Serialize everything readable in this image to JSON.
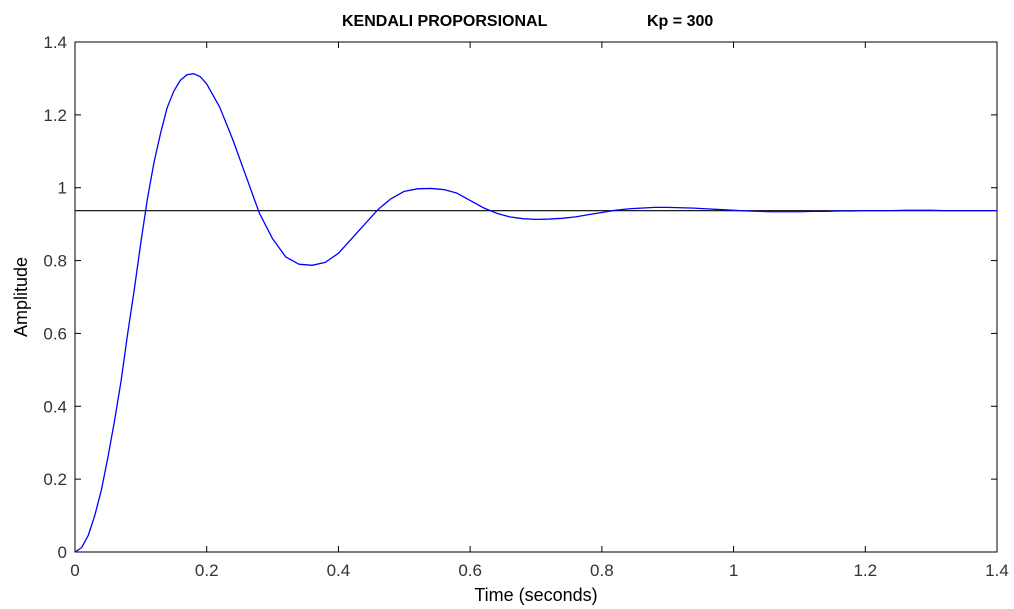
{
  "chart_data": {
    "type": "line",
    "title_left": "KENDALI PROPORSIONAL",
    "title_right": "Kp = 300",
    "xlabel": "Time (seconds)",
    "ylabel": "Amplitude",
    "xlim": [
      0,
      1.4
    ],
    "ylim": [
      0,
      1.4
    ],
    "xticks": [
      "0",
      "0.2",
      "0.4",
      "0.6",
      "0.8",
      "1",
      "1.2",
      "1.4"
    ],
    "yticks": [
      "0",
      "0.2",
      "0.4",
      "0.6",
      "0.8",
      "1",
      "1.2",
      "1.4"
    ],
    "grid": false,
    "colors": {
      "response": "#0000ff",
      "reference": "#000000",
      "axes": "#000000"
    },
    "series": [
      {
        "values": [
          [
            0,
            0
          ],
          [
            0.01,
            0.012
          ],
          [
            0.02,
            0.045
          ],
          [
            0.03,
            0.1
          ],
          [
            0.04,
            0.17
          ],
          [
            0.05,
            0.26
          ],
          [
            0.06,
            0.36
          ],
          [
            0.07,
            0.47
          ],
          [
            0.08,
            0.6
          ],
          [
            0.09,
            0.72
          ],
          [
            0.1,
            0.85
          ],
          [
            0.11,
            0.97
          ],
          [
            0.12,
            1.07
          ],
          [
            0.13,
            1.15
          ],
          [
            0.14,
            1.22
          ],
          [
            0.15,
            1.265
          ],
          [
            0.16,
            1.295
          ],
          [
            0.17,
            1.31
          ],
          [
            0.18,
            1.313
          ],
          [
            0.19,
            1.305
          ],
          [
            0.2,
            1.285
          ],
          [
            0.22,
            1.22
          ],
          [
            0.24,
            1.13
          ],
          [
            0.26,
            1.03
          ],
          [
            0.28,
            0.93
          ],
          [
            0.3,
            0.86
          ],
          [
            0.32,
            0.81
          ],
          [
            0.34,
            0.79
          ],
          [
            0.36,
            0.787
          ],
          [
            0.38,
            0.795
          ],
          [
            0.4,
            0.82
          ],
          [
            0.42,
            0.86
          ],
          [
            0.44,
            0.9
          ],
          [
            0.46,
            0.94
          ],
          [
            0.48,
            0.97
          ],
          [
            0.5,
            0.99
          ],
          [
            0.52,
            0.997
          ],
          [
            0.54,
            0.998
          ],
          [
            0.56,
            0.995
          ],
          [
            0.58,
            0.985
          ],
          [
            0.6,
            0.965
          ],
          [
            0.62,
            0.945
          ],
          [
            0.64,
            0.93
          ],
          [
            0.66,
            0.92
          ],
          [
            0.68,
            0.915
          ],
          [
            0.7,
            0.913
          ],
          [
            0.72,
            0.914
          ],
          [
            0.74,
            0.916
          ],
          [
            0.76,
            0.92
          ],
          [
            0.78,
            0.926
          ],
          [
            0.8,
            0.932
          ],
          [
            0.82,
            0.938
          ],
          [
            0.84,
            0.942
          ],
          [
            0.86,
            0.944
          ],
          [
            0.88,
            0.946
          ],
          [
            0.9,
            0.946
          ],
          [
            0.92,
            0.945
          ],
          [
            0.94,
            0.944
          ],
          [
            0.96,
            0.942
          ],
          [
            0.98,
            0.94
          ],
          [
            1,
            0.938
          ],
          [
            1.02,
            0.936
          ],
          [
            1.04,
            0.935
          ],
          [
            1.06,
            0.934
          ],
          [
            1.08,
            0.934
          ],
          [
            1.1,
            0.934
          ],
          [
            1.12,
            0.935
          ],
          [
            1.14,
            0.935
          ],
          [
            1.16,
            0.936
          ],
          [
            1.18,
            0.936
          ],
          [
            1.2,
            0.937
          ],
          [
            1.22,
            0.937
          ],
          [
            1.24,
            0.937
          ],
          [
            1.26,
            0.938
          ],
          [
            1.28,
            0.938
          ],
          [
            1.3,
            0.938
          ],
          [
            1.32,
            0.937
          ],
          [
            1.34,
            0.937
          ],
          [
            1.36,
            0.937
          ],
          [
            1.38,
            0.937
          ],
          [
            1.4,
            0.937
          ]
        ]
      }
    ],
    "reference_line": {
      "y": 0.937
    }
  }
}
